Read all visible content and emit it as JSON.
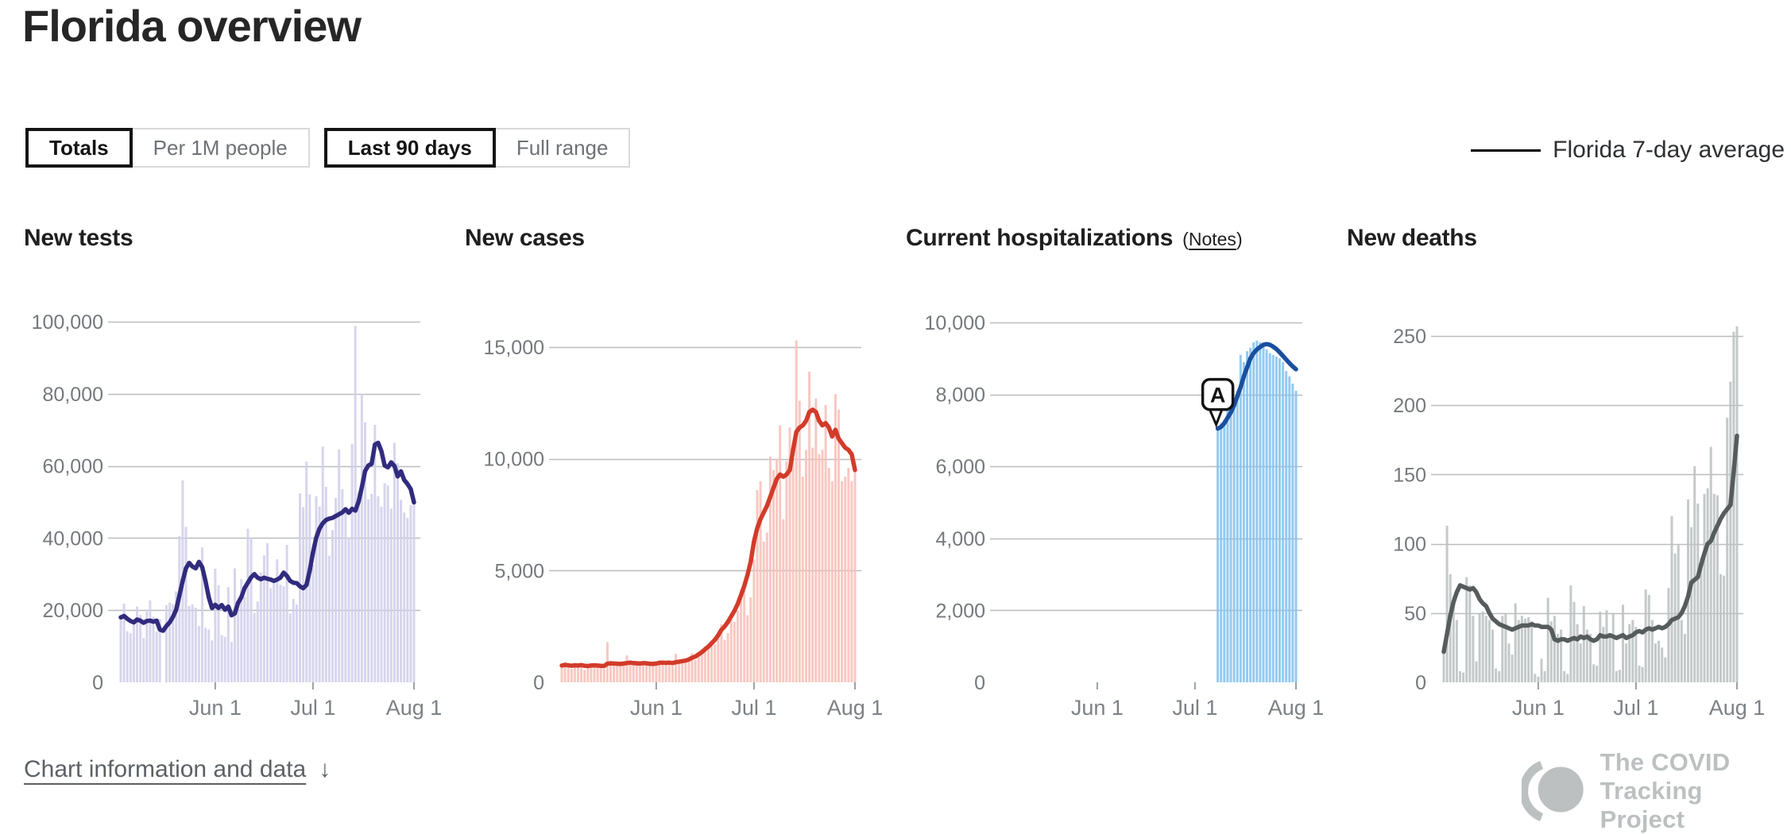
{
  "page": {
    "title": "Florida overview"
  },
  "controls": {
    "metric_toggle": [
      {
        "label": "Totals",
        "active": true
      },
      {
        "label": "Per 1M people",
        "active": false
      }
    ],
    "range_toggle": [
      {
        "label": "Last 90 days",
        "active": true
      },
      {
        "label": "Full range",
        "active": false
      }
    ],
    "legend": {
      "label": "Florida 7-day average",
      "line_color": "#000000"
    }
  },
  "footer": {
    "chart_info_label": "Chart information and data",
    "arrow": "↓",
    "logo_line1": "The COVID",
    "logo_line2": "Tracking Project",
    "logo_color": "#bcc0c0"
  },
  "chart_data": [
    {
      "id": "new-tests",
      "type": "bar",
      "title": "New tests",
      "bar_color": "#d2cfeb",
      "line_color": "#312b7e",
      "ylim": [
        0,
        100000
      ],
      "y_ticks": [
        0,
        20000,
        40000,
        60000,
        80000,
        100000
      ],
      "x_ticks": [
        {
          "index": 29,
          "label": "Jun 1"
        },
        {
          "index": 59,
          "label": "Jul 1"
        },
        {
          "index": 90,
          "label": "Aug 1"
        }
      ],
      "legend_series": "Florida 7-day average",
      "bars": [
        17500,
        21800,
        14200,
        13600,
        16400,
        21000,
        18700,
        12300,
        19600,
        22700,
        18200,
        14100,
        17600,
        0,
        21400,
        22100,
        21700,
        25200,
        40600,
        56000,
        43100,
        21200,
        21600,
        20700,
        15600,
        37400,
        15100,
        14600,
        11600,
        31500,
        26900,
        13100,
        12600,
        26400,
        11200,
        31600,
        21400,
        28600,
        23700,
        42600,
        40100,
        19200,
        22400,
        30500,
        35200,
        38600,
        26100,
        28200,
        34100,
        27100,
        26600,
        38100,
        19100,
        23100,
        21600,
        52400,
        48600,
        61200,
        52100,
        32600,
        51600,
        48700,
        65400,
        54200,
        35100,
        42200,
        51100,
        64600,
        53600,
        48100,
        40200,
        66100,
        98800,
        52600,
        80000,
        72100,
        50700,
        52200,
        71400,
        51600,
        48700,
        55200,
        54600,
        48200,
        66400,
        60700,
        50600,
        47100,
        45600,
        49100,
        51500
      ],
      "line": [
        18000,
        18400,
        17600,
        17000,
        16600,
        17400,
        17100,
        16500,
        17000,
        17100,
        16800,
        17100,
        14600,
        14300,
        15600,
        16600,
        18100,
        20100,
        24100,
        28100,
        31600,
        33100,
        32100,
        31600,
        33400,
        31900,
        28100,
        23600,
        20600,
        21500,
        20600,
        21400,
        20100,
        21000,
        18600,
        19100,
        22000,
        23600,
        26100,
        27600,
        29100,
        30000,
        29000,
        28600,
        29000,
        28700,
        28500,
        28100,
        28500,
        29000,
        30400,
        29500,
        28100,
        27600,
        27500,
        26600,
        26100,
        27000,
        31000,
        36000,
        40100,
        42600,
        44100,
        45000,
        45400,
        45600,
        46100,
        46600,
        47100,
        48000,
        47000,
        48100,
        47600,
        50100,
        54100,
        58600,
        60100,
        60600,
        65900,
        66400,
        64100,
        60100,
        59600,
        61000,
        60000,
        57100,
        58500,
        56100,
        55000,
        53600,
        49900
      ]
    },
    {
      "id": "new-cases",
      "type": "bar",
      "title": "New cases",
      "bar_color": "#f7c0b9",
      "line_color": "#d23b2a",
      "ylim": [
        0,
        15000
      ],
      "y_ticks": [
        0,
        5000,
        10000,
        15000
      ],
      "x_ticks": [
        {
          "index": 29,
          "label": "Jun 1"
        },
        {
          "index": 59,
          "label": "Jul 1"
        },
        {
          "index": 90,
          "label": "Aug 1"
        }
      ],
      "legend_series": "Florida 7-day average",
      "bars": [
        700,
        900,
        650,
        600,
        800,
        750,
        850,
        550,
        700,
        800,
        720,
        680,
        740,
        600,
        1800,
        950,
        800,
        760,
        820,
        900,
        1200,
        850,
        800,
        830,
        780,
        900,
        820,
        760,
        740,
        950,
        1000,
        880,
        820,
        900,
        750,
        1270,
        1000,
        950,
        900,
        1100,
        1300,
        1000,
        1200,
        1400,
        1600,
        1500,
        1800,
        1700,
        2000,
        2600,
        1900,
        2200,
        2800,
        2700,
        3200,
        3800,
        4400,
        3000,
        3800,
        5500,
        8600,
        9000,
        6300,
        6700,
        10100,
        9500,
        10000,
        11500,
        7300,
        9900,
        11400,
        10200,
        15300,
        12600,
        9200,
        10400,
        13900,
        10500,
        12700,
        10200,
        10400,
        12400,
        9600,
        9000,
        12900,
        12200,
        9000,
        9200,
        9600,
        9000,
        9500
      ],
      "line": [
        750,
        780,
        760,
        740,
        760,
        750,
        770,
        740,
        730,
        750,
        760,
        750,
        740,
        730,
        830,
        850,
        840,
        830,
        820,
        840,
        860,
        880,
        860,
        850,
        840,
        860,
        850,
        830,
        820,
        840,
        870,
        880,
        870,
        880,
        860,
        900,
        920,
        950,
        970,
        1020,
        1100,
        1150,
        1250,
        1350,
        1480,
        1600,
        1750,
        1900,
        2100,
        2350,
        2500,
        2700,
        2950,
        3200,
        3500,
        3900,
        4300,
        4800,
        5400,
        6300,
        6900,
        7300,
        7600,
        7900,
        8300,
        8700,
        9100,
        9300,
        9200,
        9300,
        9500,
        10400,
        11200,
        11400,
        11500,
        11700,
        12100,
        12200,
        12100,
        11700,
        11500,
        11600,
        11400,
        11000,
        11300,
        10900,
        10700,
        10500,
        10400,
        10200,
        9500
      ]
    },
    {
      "id": "current-hospitalizations",
      "type": "bar",
      "title": "Current hospitalizations",
      "notes_label": "Notes",
      "bar_color": "#85c3f0",
      "line_color": "#1a4f9e",
      "ylim": [
        0,
        10000
      ],
      "y_ticks": [
        0,
        2000,
        4000,
        6000,
        8000,
        10000
      ],
      "x_ticks": [
        {
          "index": 29,
          "label": "Jun 1"
        },
        {
          "index": 59,
          "label": "Jul 1"
        },
        {
          "index": 90,
          "label": "Aug 1"
        }
      ],
      "legend_series": "Florida 7-day average",
      "annotation": {
        "label": "A",
        "index": 66
      },
      "bars": [
        null,
        null,
        null,
        null,
        null,
        null,
        null,
        null,
        null,
        null,
        null,
        null,
        null,
        null,
        null,
        null,
        null,
        null,
        null,
        null,
        null,
        null,
        null,
        null,
        null,
        null,
        null,
        null,
        null,
        null,
        null,
        null,
        null,
        null,
        null,
        null,
        null,
        null,
        null,
        null,
        null,
        null,
        null,
        null,
        null,
        null,
        null,
        null,
        null,
        null,
        null,
        null,
        null,
        null,
        null,
        null,
        null,
        null,
        null,
        null,
        null,
        null,
        null,
        null,
        null,
        null,
        7000,
        7200,
        7300,
        7600,
        8400,
        7900,
        8100,
        9100,
        8900,
        9200,
        9300,
        9450,
        9500,
        9450,
        9400,
        9250,
        9150,
        9100,
        9050,
        9000,
        8900,
        8650,
        8500,
        8300,
        8100
      ],
      "line": [
        null,
        null,
        null,
        null,
        null,
        null,
        null,
        null,
        null,
        null,
        null,
        null,
        null,
        null,
        null,
        null,
        null,
        null,
        null,
        null,
        null,
        null,
        null,
        null,
        null,
        null,
        null,
        null,
        null,
        null,
        null,
        null,
        null,
        null,
        null,
        null,
        null,
        null,
        null,
        null,
        null,
        null,
        null,
        null,
        null,
        null,
        null,
        null,
        null,
        null,
        null,
        null,
        null,
        null,
        null,
        null,
        null,
        null,
        null,
        null,
        null,
        null,
        null,
        null,
        null,
        null,
        7050,
        7100,
        7200,
        7350,
        7500,
        7700,
        7950,
        8200,
        8500,
        8750,
        9000,
        9150,
        9250,
        9320,
        9380,
        9400,
        9380,
        9330,
        9260,
        9170,
        9070,
        8970,
        8870,
        8780,
        8700
      ]
    },
    {
      "id": "new-deaths",
      "type": "bar",
      "title": "New deaths",
      "bar_color": "#bcc2c2",
      "line_color": "#565c5c",
      "ylim": [
        0,
        250
      ],
      "y_ticks": [
        0,
        50,
        100,
        150,
        200,
        250
      ],
      "x_ticks": [
        {
          "index": 29,
          "label": "Jun 1"
        },
        {
          "index": 59,
          "label": "Jul 1"
        },
        {
          "index": 90,
          "label": "Aug 1"
        }
      ],
      "legend_series": "Florida 7-day average",
      "bars": [
        25,
        113,
        78,
        62,
        45,
        8,
        7,
        76,
        70,
        48,
        15,
        50,
        51,
        48,
        45,
        38,
        10,
        8,
        48,
        50,
        28,
        20,
        57,
        45,
        48,
        46,
        47,
        44,
        6,
        4,
        17,
        8,
        61,
        44,
        48,
        35,
        38,
        8,
        6,
        70,
        58,
        42,
        28,
        55,
        38,
        35,
        13,
        12,
        51,
        40,
        52,
        35,
        50,
        8,
        9,
        56,
        28,
        42,
        45,
        40,
        12,
        11,
        67,
        63,
        45,
        28,
        30,
        25,
        18,
        68,
        120,
        93,
        99,
        45,
        35,
        132,
        112,
        156,
        129,
        90,
        136,
        140,
        170,
        136,
        135,
        78,
        77,
        191,
        217,
        253,
        257
      ],
      "line": [
        22,
        35,
        48,
        58,
        65,
        70,
        69,
        68,
        67,
        68,
        65,
        60,
        57,
        55,
        50,
        46,
        44,
        42,
        41,
        40,
        39,
        38,
        39,
        40,
        41,
        41,
        41,
        42,
        41,
        41,
        40,
        40,
        40,
        38,
        31,
        30,
        31,
        31,
        30,
        31,
        32,
        31,
        33,
        32,
        33,
        31,
        30,
        31,
        34,
        33,
        33,
        34,
        33,
        32,
        33,
        34,
        32,
        33,
        34,
        36,
        37,
        36,
        38,
        39,
        38,
        39,
        40,
        39,
        40,
        42,
        45,
        46,
        47,
        50,
        55,
        62,
        72,
        74,
        76,
        85,
        93,
        100,
        102,
        108,
        113,
        118,
        122,
        125,
        128,
        152,
        178
      ]
    }
  ]
}
